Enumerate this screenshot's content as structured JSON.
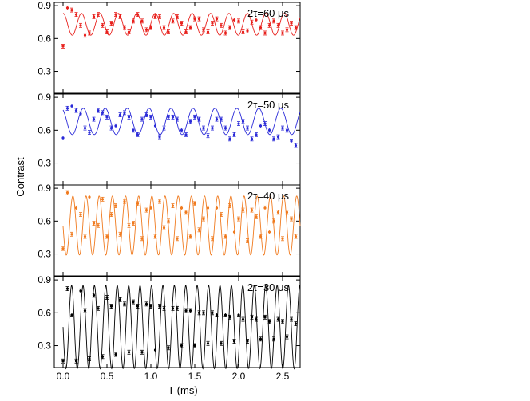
{
  "figure": {
    "ylabel": "Contrast",
    "xlabel": "T (ms)"
  },
  "chart_data": [
    {
      "type": "scatter",
      "panel_label": "2τ=60 μs",
      "color": "#e8201c",
      "x_ticks": [
        "0.0",
        "0.5",
        "1.0",
        "1.5",
        "2.0",
        "2.5"
      ],
      "y_ticks": [
        "0.3",
        "0.6",
        "0.9"
      ],
      "xlim": [
        -0.1,
        2.7
      ],
      "ylim": [
        0.1,
        0.93
      ],
      "fit": {
        "offset": 0.73,
        "amplitude": 0.1,
        "period_ms": 0.21,
        "phase": 0.0,
        "decay": 0.0
      },
      "x": [
        0.0,
        0.05,
        0.1,
        0.15,
        0.2,
        0.25,
        0.3,
        0.35,
        0.4,
        0.45,
        0.5,
        0.55,
        0.6,
        0.65,
        0.7,
        0.75,
        0.8,
        0.85,
        0.9,
        0.95,
        1.0,
        1.05,
        1.1,
        1.15,
        1.2,
        1.25,
        1.3,
        1.35,
        1.4,
        1.45,
        1.5,
        1.55,
        1.6,
        1.65,
        1.7,
        1.75,
        1.8,
        1.85,
        1.9,
        1.95,
        2.0,
        2.05,
        2.1,
        2.15,
        2.2,
        2.25,
        2.3,
        2.35,
        2.4,
        2.45,
        2.5,
        2.55,
        2.6,
        2.65
      ],
      "y": [
        0.53,
        0.88,
        0.86,
        0.82,
        0.72,
        0.63,
        0.65,
        0.8,
        0.82,
        0.72,
        0.66,
        0.74,
        0.82,
        0.8,
        0.7,
        0.66,
        0.76,
        0.82,
        0.76,
        0.68,
        0.7,
        0.8,
        0.8,
        0.7,
        0.66,
        0.76,
        0.8,
        0.74,
        0.66,
        0.7,
        0.78,
        0.78,
        0.68,
        0.66,
        0.74,
        0.78,
        0.72,
        0.65,
        0.7,
        0.77,
        0.76,
        0.66,
        0.67,
        0.75,
        0.77,
        0.7,
        0.65,
        0.72,
        0.76,
        0.72,
        0.65,
        0.68,
        0.74,
        0.7
      ]
    },
    {
      "type": "scatter",
      "panel_label": "2τ=50 μs",
      "color": "#2a2ad8",
      "x_ticks": [
        "0.0",
        "0.5",
        "1.0",
        "1.5",
        "2.0",
        "2.5"
      ],
      "y_ticks": [
        "0.3",
        "0.6",
        "0.9"
      ],
      "xlim": [
        -0.1,
        2.7
      ],
      "ylim": [
        0.1,
        0.93
      ],
      "fit": {
        "offset": 0.68,
        "amplitude": 0.12,
        "period_ms": 0.25,
        "phase": 0.5,
        "decay": 0.0
      },
      "x": [
        0.0,
        0.05,
        0.1,
        0.15,
        0.2,
        0.25,
        0.3,
        0.35,
        0.4,
        0.45,
        0.5,
        0.55,
        0.6,
        0.65,
        0.7,
        0.75,
        0.8,
        0.85,
        0.9,
        0.95,
        1.0,
        1.05,
        1.1,
        1.15,
        1.2,
        1.25,
        1.3,
        1.35,
        1.4,
        1.45,
        1.5,
        1.55,
        1.6,
        1.65,
        1.7,
        1.75,
        1.8,
        1.85,
        1.9,
        1.95,
        2.0,
        2.05,
        2.1,
        2.15,
        2.2,
        2.25,
        2.3,
        2.35,
        2.4,
        2.45,
        2.5,
        2.55,
        2.6,
        2.65
      ],
      "y": [
        0.53,
        0.8,
        0.82,
        0.78,
        0.75,
        0.62,
        0.58,
        0.7,
        0.78,
        0.76,
        0.72,
        0.62,
        0.64,
        0.74,
        0.76,
        0.72,
        0.6,
        0.56,
        0.7,
        0.74,
        0.72,
        0.64,
        0.54,
        0.62,
        0.72,
        0.72,
        0.7,
        0.6,
        0.56,
        0.68,
        0.72,
        0.7,
        0.62,
        0.55,
        0.62,
        0.7,
        0.7,
        0.62,
        0.52,
        0.56,
        0.66,
        0.68,
        0.62,
        0.52,
        0.56,
        0.64,
        0.66,
        0.6,
        0.52,
        0.54,
        0.62,
        0.6,
        0.5,
        0.46
      ]
    },
    {
      "type": "scatter",
      "panel_label": "2τ=40 μs",
      "color": "#f07a1e",
      "x_ticks": [
        "0.0",
        "0.5",
        "1.0",
        "1.5",
        "2.0",
        "2.5"
      ],
      "y_ticks": [
        "0.3",
        "0.6",
        "0.9"
      ],
      "xlim": [
        -0.1,
        2.7
      ],
      "ylim": [
        0.1,
        0.93
      ],
      "fit": {
        "offset": 0.56,
        "amplitude": 0.27,
        "period_ms": 0.15,
        "phase": 1.6,
        "decay": 0.0
      },
      "x": [
        0.0,
        0.05,
        0.1,
        0.15,
        0.2,
        0.25,
        0.3,
        0.35,
        0.4,
        0.45,
        0.5,
        0.55,
        0.6,
        0.65,
        0.7,
        0.75,
        0.8,
        0.85,
        0.9,
        0.95,
        1.0,
        1.05,
        1.1,
        1.15,
        1.2,
        1.25,
        1.3,
        1.35,
        1.4,
        1.45,
        1.5,
        1.55,
        1.6,
        1.65,
        1.7,
        1.75,
        1.8,
        1.85,
        1.9,
        1.95,
        2.0,
        2.05,
        2.1,
        2.15,
        2.2,
        2.25,
        2.3,
        2.35,
        2.4,
        2.45,
        2.5,
        2.55,
        2.6,
        2.65
      ],
      "y": [
        0.35,
        0.86,
        0.48,
        0.72,
        0.66,
        0.46,
        0.82,
        0.58,
        0.56,
        0.8,
        0.46,
        0.66,
        0.74,
        0.48,
        0.78,
        0.56,
        0.58,
        0.76,
        0.44,
        0.7,
        0.72,
        0.46,
        0.78,
        0.54,
        0.6,
        0.74,
        0.44,
        0.72,
        0.68,
        0.46,
        0.76,
        0.52,
        0.62,
        0.72,
        0.44,
        0.72,
        0.66,
        0.46,
        0.74,
        0.5,
        0.62,
        0.7,
        0.42,
        0.7,
        0.64,
        0.46,
        0.72,
        0.5,
        0.6,
        0.68,
        0.44,
        0.68,
        0.62,
        0.46
      ]
    },
    {
      "type": "scatter",
      "panel_label": "2τ=30 μs",
      "color": "#000000",
      "x_ticks": [
        "0.0",
        "0.5",
        "1.0",
        "1.5",
        "2.0",
        "2.5"
      ],
      "y_ticks": [
        "0.3",
        "0.6",
        "0.9"
      ],
      "xlim": [
        -0.1,
        2.7
      ],
      "ylim": [
        0.1,
        0.93
      ],
      "fit": {
        "offset": 0.47,
        "amplitude": 0.38,
        "period_ms": 0.13,
        "phase": 1.57,
        "decay": 0.0
      },
      "x": [
        0.0,
        0.05,
        0.1,
        0.15,
        0.2,
        0.25,
        0.3,
        0.35,
        0.4,
        0.45,
        0.5,
        0.55,
        0.6,
        0.65,
        0.7,
        0.75,
        0.8,
        0.85,
        0.9,
        0.95,
        1.0,
        1.05,
        1.1,
        1.15,
        1.2,
        1.25,
        1.3,
        1.35,
        1.4,
        1.45,
        1.5,
        1.55,
        1.6,
        1.65,
        1.7,
        1.75,
        1.8,
        1.85,
        1.9,
        1.95,
        2.0,
        2.05,
        2.1,
        2.15,
        2.2,
        2.25,
        2.3,
        2.35,
        2.4,
        2.45,
        2.5,
        2.55,
        2.6,
        2.65
      ],
      "y": [
        0.16,
        0.82,
        0.58,
        0.16,
        0.8,
        0.62,
        0.18,
        0.76,
        0.64,
        0.2,
        0.74,
        0.66,
        0.22,
        0.72,
        0.68,
        0.24,
        0.7,
        0.66,
        0.24,
        0.68,
        0.66,
        0.26,
        0.66,
        0.64,
        0.28,
        0.64,
        0.64,
        0.3,
        0.62,
        0.62,
        0.3,
        0.6,
        0.6,
        0.32,
        0.6,
        0.58,
        0.32,
        0.58,
        0.56,
        0.34,
        0.58,
        0.54,
        0.34,
        0.56,
        0.54,
        0.36,
        0.56,
        0.52,
        0.36,
        0.54,
        0.52,
        0.38,
        0.54,
        0.5
      ]
    }
  ]
}
